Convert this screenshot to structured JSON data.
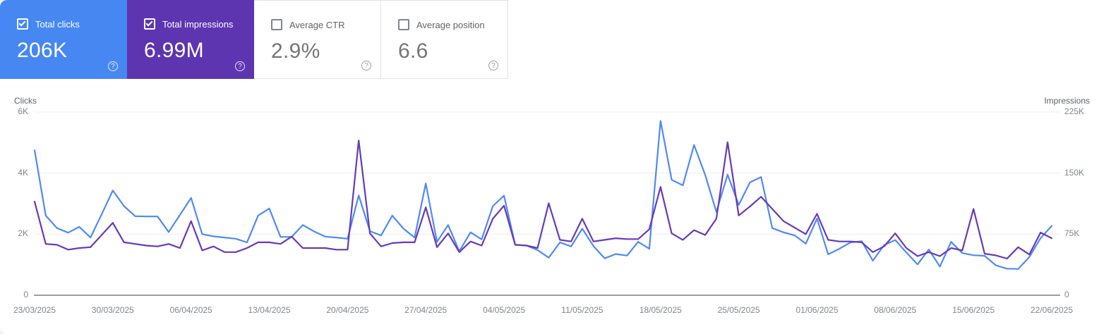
{
  "cards": {
    "total_clicks": {
      "label": "Total clicks",
      "value": "206K",
      "checked": true,
      "bg": "#4687f2"
    },
    "total_impressions": {
      "label": "Total impressions",
      "value": "6.99M",
      "checked": true,
      "bg": "#5e35b1"
    },
    "average_ctr": {
      "label": "Average CTR",
      "value": "2.9%",
      "checked": false
    },
    "average_position": {
      "label": "Average position",
      "value": "6.6",
      "checked": false
    }
  },
  "icons": {
    "help": "?"
  },
  "chart_data": {
    "type": "line",
    "x_labels": [
      "23/03/2025",
      "30/03/2025",
      "06/04/2025",
      "13/04/2025",
      "20/04/2025",
      "27/04/2025",
      "04/05/2025",
      "11/05/2025",
      "18/05/2025",
      "25/05/2025",
      "01/06/2025",
      "08/06/2025",
      "15/06/2025",
      "22/06/2025"
    ],
    "points_per_label_interval": 7,
    "grid": "horizontal",
    "legend": "none",
    "left_axis": {
      "title": "Clicks",
      "ticks": [
        "6K",
        "4K",
        "2K",
        "0"
      ],
      "range": [
        0,
        6000
      ]
    },
    "right_axis": {
      "title": "Impressions",
      "ticks": [
        "225K",
        "150K",
        "75K",
        "0"
      ],
      "range": [
        0,
        225000
      ]
    },
    "series": [
      {
        "name": "Clicks",
        "axis": "left",
        "color": "#4e8af4",
        "values": [
          4750,
          2610,
          2200,
          2050,
          2240,
          1890,
          2650,
          3430,
          2920,
          2590,
          2580,
          2580,
          2070,
          2630,
          3190,
          2000,
          1930,
          1890,
          1850,
          1730,
          2610,
          2840,
          1910,
          1910,
          2300,
          2090,
          1920,
          1890,
          1850,
          3270,
          2100,
          1960,
          2610,
          2180,
          1890,
          3660,
          1750,
          2300,
          1440,
          2060,
          1830,
          2920,
          3260,
          1650,
          1630,
          1480,
          1230,
          1730,
          1600,
          2180,
          1610,
          1210,
          1350,
          1300,
          1750,
          1520,
          5710,
          3780,
          3600,
          4920,
          3940,
          2730,
          3950,
          2960,
          3700,
          3870,
          2200,
          2060,
          1960,
          1690,
          2510,
          1340,
          1520,
          1730,
          1770,
          1130,
          1640,
          1810,
          1400,
          1010,
          1500,
          940,
          1750,
          1380,
          1310,
          1290,
          980,
          870,
          860,
          1250,
          1870,
          2270
        ]
      },
      {
        "name": "Impressions",
        "axis": "right",
        "color": "#673ab7",
        "values": [
          115000,
          63000,
          62000,
          56000,
          58000,
          59000,
          74000,
          89000,
          65000,
          63000,
          61000,
          60000,
          63000,
          58000,
          91000,
          55000,
          60000,
          53000,
          53000,
          58000,
          65000,
          65000,
          63000,
          72000,
          58000,
          58000,
          58000,
          56000,
          56000,
          190000,
          76000,
          60000,
          64000,
          65000,
          65000,
          108000,
          59000,
          76000,
          53000,
          66000,
          61000,
          94000,
          110000,
          62000,
          61000,
          58000,
          113000,
          68000,
          66000,
          94000,
          66000,
          68000,
          70000,
          69000,
          69000,
          81000,
          133000,
          76000,
          68000,
          80000,
          74000,
          94000,
          188000,
          98000,
          109000,
          121000,
          106000,
          91000,
          83000,
          75000,
          100000,
          68000,
          66000,
          66000,
          65000,
          53000,
          60000,
          76000,
          58000,
          48000,
          53000,
          48000,
          58000,
          55000,
          106000,
          51000,
          49000,
          45000,
          59000,
          50000,
          77000,
          70000
        ]
      }
    ]
  }
}
